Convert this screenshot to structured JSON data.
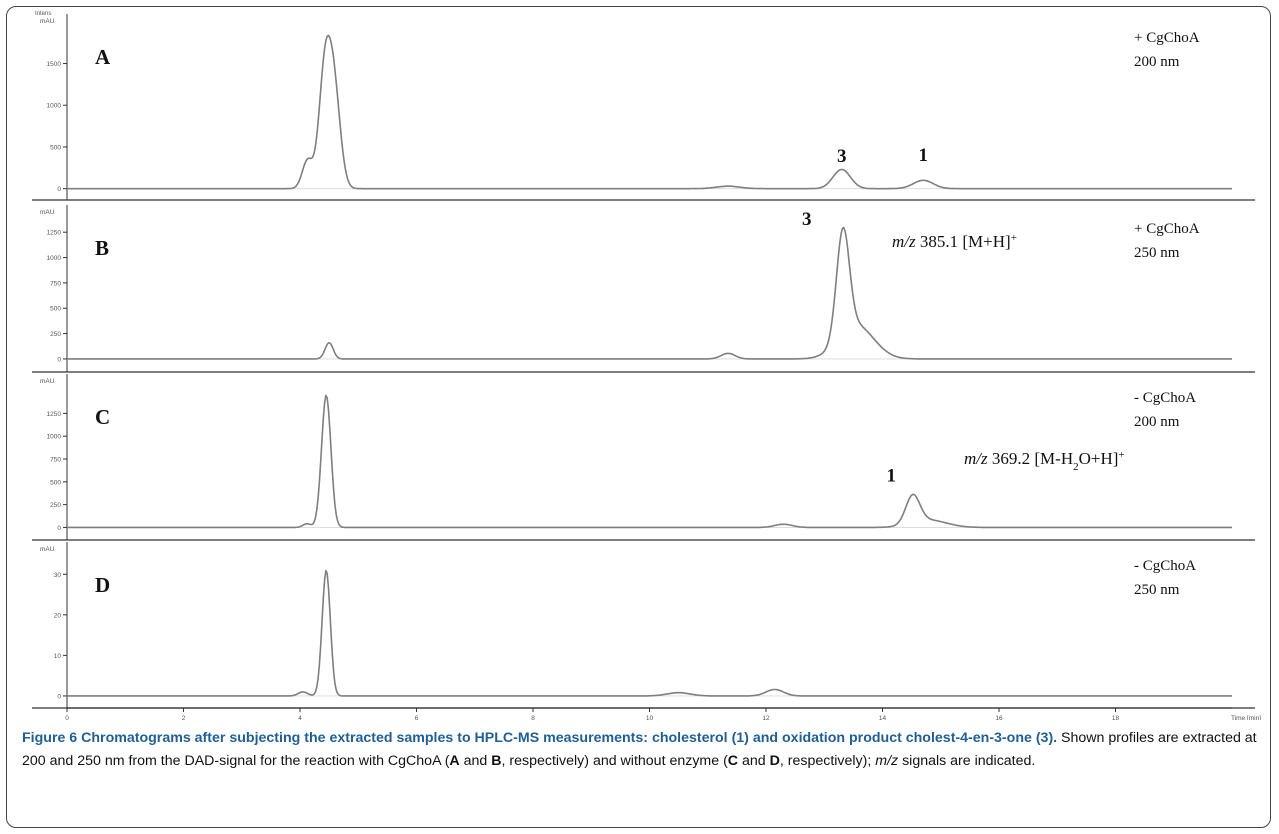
{
  "chart_data": {
    "type": "line",
    "shared_x_axis": {
      "label": "Time [min]",
      "ticks": [
        0,
        2,
        4,
        6,
        8,
        10,
        12,
        14,
        16,
        18
      ],
      "xlim": [
        0,
        20
      ]
    },
    "panels": [
      {
        "panel_label": "A",
        "y_unit_label_top": "Intens",
        "y_unit_label": "mAU",
        "yticks": [
          0,
          500,
          1000,
          1500
        ],
        "ylim": [
          -40,
          1950
        ],
        "condition_line1": "+ CgChoA",
        "condition_line2": "200 nm",
        "peak_labels": [
          {
            "text": "3",
            "x": 13.3,
            "y": 250
          },
          {
            "text": "1",
            "x": 14.7,
            "y": 260
          }
        ],
        "mz_annotation": "",
        "peaks": [
          {
            "x": 4.13,
            "height": 340,
            "width": 0.09
          },
          {
            "x": 4.42,
            "height": 1250,
            "width": 0.1
          },
          {
            "x": 4.58,
            "height": 1200,
            "width": 0.11
          },
          {
            "x": 11.35,
            "height": 30,
            "width": 0.2
          },
          {
            "x": 13.3,
            "height": 230,
            "width": 0.15
          },
          {
            "x": 14.7,
            "height": 100,
            "width": 0.17
          }
        ]
      },
      {
        "panel_label": "B",
        "y_unit_label_top": "",
        "y_unit_label": "mAU",
        "yticks": [
          0,
          250,
          500,
          750,
          1000,
          1250
        ],
        "ylim": [
          -50,
          1400
        ],
        "condition_line1": "+ CgChoA",
        "condition_line2": "250 nm",
        "peak_labels": [
          {
            "text": "3",
            "x": 12.7,
            "y": 1260
          }
        ],
        "mz_annotation": {
          "italic": "m/z",
          "value": " 385.1 [M+H]",
          "superscript": "+"
        },
        "peaks": [
          {
            "x": 4.5,
            "height": 160,
            "width": 0.07
          },
          {
            "x": 11.35,
            "height": 55,
            "width": 0.12
          },
          {
            "x": 13.32,
            "height": 1050,
            "width": 0.11
          },
          {
            "x": 13.55,
            "height": 330,
            "width": 0.3
          }
        ]
      },
      {
        "panel_label": "C",
        "y_unit_label_top": "",
        "y_unit_label": "mAU",
        "yticks": [
          0,
          250,
          500,
          750,
          1000,
          1250
        ],
        "ylim": [
          -50,
          1550
        ],
        "condition_line1": "- CgChoA",
        "condition_line2": "200 nm",
        "peak_labels": [
          {
            "text": "1",
            "x": 14.15,
            "y": 440
          }
        ],
        "mz_annotation": {
          "italic": "m/z",
          "value": " 369.2 [M-H",
          "subscript": "2",
          "value2": "O+H]",
          "superscript": "+"
        },
        "peaks": [
          {
            "x": 4.12,
            "height": 40,
            "width": 0.07
          },
          {
            "x": 4.45,
            "height": 1450,
            "width": 0.08
          },
          {
            "x": 12.3,
            "height": 35,
            "width": 0.15
          },
          {
            "x": 14.52,
            "height": 310,
            "width": 0.12
          },
          {
            "x": 14.8,
            "height": 80,
            "width": 0.3
          }
        ]
      },
      {
        "panel_label": "D",
        "y_unit_label_top": "",
        "y_unit_label": "mAU",
        "yticks": [
          0,
          10,
          20,
          30
        ],
        "ylim": [
          -1,
          35
        ],
        "condition_line1": "- CgChoA",
        "condition_line2": "250 nm",
        "peak_labels": [],
        "mz_annotation": "",
        "peaks": [
          {
            "x": 4.05,
            "height": 1.0,
            "width": 0.08
          },
          {
            "x": 4.45,
            "height": 31,
            "width": 0.07
          },
          {
            "x": 10.5,
            "height": 0.8,
            "width": 0.2
          },
          {
            "x": 12.15,
            "height": 1.6,
            "width": 0.15
          }
        ]
      }
    ]
  },
  "caption": {
    "figure_label": "Figure 6",
    "title": "Chromatograms after subjecting the extracted samples to HPLC-MS measurements: cholesterol (1) and oxidation product cholest-4-en-3-one (3).",
    "text_1": " Shown profiles are extracted at 200 and 250 nm from the DAD-signal for the reaction with CgChoA (",
    "bold_a": "A",
    "text_2": " and ",
    "bold_b": "B",
    "text_3": ", respectively) and without enzyme (",
    "bold_c": "C",
    "text_4": " and ",
    "bold_d": "D",
    "text_5": ", respectively); ",
    "italic_mz": "m/z",
    "text_6": " signals are indicated."
  },
  "colors": {
    "trace": "#7f7f7f",
    "axis": "#333333",
    "caption_accent": "#1f5f95"
  }
}
